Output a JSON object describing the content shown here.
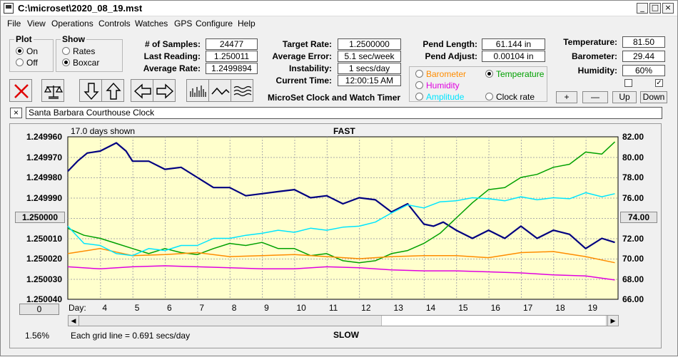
{
  "window": {
    "title": "C:\\microset\\2020_08_19.mst",
    "min_label": "_",
    "max_label": "□",
    "close_label": "×"
  },
  "menu": [
    "File",
    "View",
    "Operations",
    "Controls",
    "Watches",
    "GPS",
    "Configure",
    "Help"
  ],
  "plot": {
    "legend": "Plot",
    "on_label": "On",
    "off_label": "Off",
    "selected": "On"
  },
  "show": {
    "legend": "Show",
    "rates_label": "Rates",
    "boxcar_label": "Boxcar",
    "selected": "Boxcar"
  },
  "stats": {
    "samples_label": "# of Samples:",
    "samples_value": "24477",
    "last_reading_label": "Last Reading:",
    "last_reading_value": "1.250011",
    "average_rate_label": "Average Rate:",
    "average_rate_value": "1.2499894",
    "target_rate_label": "Target Rate:",
    "target_rate_value": "1.2500000",
    "average_error_label": "Average Error:",
    "average_error_value": "5.1 sec/week",
    "instability_label": "Instability:",
    "instability_value": "1 secs/day",
    "current_time_label": "Current Time:",
    "current_time_value": "12:00:15 AM",
    "pend_length_label": "Pend Length:",
    "pend_length_value": "61.144 in",
    "pend_adjust_label": "Pend Adjust:",
    "pend_adjust_value": "0.00104 in",
    "temperature_label": "Temperature:",
    "temperature_value": "81.50",
    "barometer_label": "Barometer:",
    "barometer_value": "29.44",
    "humidity_label": "Humidity:",
    "humidity_value": "60%"
  },
  "app_title": "MicroSet Clock and Watch Timer",
  "sensor_choices": {
    "barometer": "Barometer",
    "temperature": "Temperature",
    "humidity": "Humidity",
    "amplitude": "Amplitude",
    "clock_rate": "Clock rate",
    "selected": "Temperature"
  },
  "adjust_buttons": {
    "plus": "+",
    "minus": "—",
    "up": "Up",
    "down": "Down"
  },
  "toolbar_icons": [
    "close-x-icon",
    "balance-scale-icon",
    "arrow-down-icon",
    "arrow-up-icon",
    "arrow-left-icon",
    "arrow-right-icon",
    "bar-graph-icon",
    "line-graph-icon",
    "wave-graph-icon"
  ],
  "clock_name": {
    "close_label": "×",
    "value": "Santa Barbara Courthouse Clock"
  },
  "colors": {
    "plot_bg": "#ffffcc",
    "rate": "#000080",
    "temperature": "#00a000",
    "humidity": "#e000e0",
    "barometer": "#ff8c00",
    "amplitude": "#00e5ff"
  },
  "chart_data": {
    "type": "line",
    "title": "FAST",
    "bottom_label": "SLOW",
    "days_shown": "17.0 days shown",
    "grid_note": "Each grid line = 0.691 secs/day",
    "x_label": "Day:",
    "x_ticks": [
      4,
      5,
      6,
      7,
      8,
      9,
      10,
      11,
      12,
      13,
      14,
      15,
      16,
      17,
      18,
      19
    ],
    "xlim": [
      3,
      20
    ],
    "left_axis": {
      "ticks": [
        "1.249960",
        "1.249970",
        "1.249980",
        "1.249990",
        "1.250000",
        "1.250010",
        "1.250020",
        "1.250030",
        "1.250040"
      ],
      "ylim": [
        1.24996,
        1.25004
      ],
      "reversed": true,
      "center_button": "1.250000"
    },
    "right_axis": {
      "ticks": [
        "82.00",
        "80.00",
        "78.00",
        "76.00",
        "74.00",
        "72.00",
        "70.00",
        "68.00",
        "66.00"
      ],
      "ylim": [
        66,
        82
      ],
      "center_button": "74.00"
    },
    "left_bottom_button": "0",
    "percent_label": "1.56%",
    "series": [
      {
        "key": "rate",
        "axis": "left",
        "x": [
          3,
          3.3,
          3.6,
          4,
          4.5,
          4.8,
          5,
          5.5,
          6,
          6.5,
          7,
          7.5,
          8,
          8.5,
          9,
          9.5,
          10,
          10.5,
          11,
          11.5,
          12,
          12.5,
          13,
          13.5,
          14,
          14.3,
          14.6,
          15,
          15.5,
          16,
          16.5,
          17,
          17.5,
          18,
          18.5,
          19,
          19.5,
          19.9
        ],
        "y": [
          1.249977,
          1.249972,
          1.249968,
          1.249967,
          1.249963,
          1.249967,
          1.249972,
          1.249972,
          1.249976,
          1.249975,
          1.24998,
          1.249985,
          1.249985,
          1.249989,
          1.249988,
          1.249987,
          1.249986,
          1.24999,
          1.249989,
          1.249993,
          1.24999,
          1.249991,
          1.249997,
          1.249993,
          1.250003,
          1.250004,
          1.250002,
          1.250006,
          1.25001,
          1.250006,
          1.25001,
          1.250004,
          1.25001,
          1.250006,
          1.250008,
          1.250015,
          1.25001,
          1.250012
        ]
      },
      {
        "key": "temperature",
        "axis": "right",
        "x": [
          3,
          3.5,
          4,
          4.5,
          5,
          5.5,
          6,
          6.5,
          7,
          7.5,
          8,
          8.5,
          9,
          9.5,
          10,
          10.5,
          11,
          11.5,
          12,
          12.5,
          13,
          13.5,
          14,
          14.5,
          15,
          15.5,
          16,
          16.5,
          17,
          17.5,
          18,
          18.5,
          19,
          19.5,
          19.9
        ],
        "y": [
          73.0,
          72.3,
          72.0,
          71.5,
          71.0,
          70.5,
          71.0,
          70.6,
          70.4,
          71.0,
          71.5,
          71.3,
          71.6,
          71.0,
          71.0,
          70.3,
          70.5,
          69.8,
          69.6,
          69.8,
          70.5,
          70.8,
          71.5,
          72.5,
          74.0,
          75.5,
          76.8,
          77.0,
          78.0,
          78.3,
          79.0,
          79.3,
          80.5,
          80.3,
          81.5
        ]
      },
      {
        "key": "humidity",
        "axis": "right",
        "x": [
          3,
          4,
          5,
          6,
          7,
          8,
          9,
          10,
          11,
          12,
          13,
          14,
          15,
          16,
          17,
          18,
          19,
          19.9
        ],
        "y": [
          69.2,
          69.0,
          69.2,
          69.3,
          69.2,
          69.1,
          69.0,
          69.0,
          69.2,
          69.1,
          68.9,
          68.8,
          68.8,
          68.7,
          68.6,
          68.4,
          68.3,
          67.9
        ]
      },
      {
        "key": "barometer",
        "axis": "right",
        "x": [
          3,
          4,
          5,
          6,
          7,
          8,
          9,
          10,
          11,
          12,
          13,
          14,
          15,
          16,
          17,
          18,
          19,
          19.9
        ],
        "y": [
          70.5,
          71.0,
          70.3,
          70.4,
          70.6,
          70.2,
          70.3,
          70.4,
          70.2,
          70.0,
          70.2,
          70.3,
          70.3,
          70.1,
          70.6,
          70.7,
          70.2,
          69.6
        ]
      },
      {
        "key": "amplitude",
        "axis": "right",
        "x": [
          3,
          3.5,
          4,
          4.5,
          5,
          5.5,
          6,
          6.5,
          7,
          7.5,
          8,
          8.5,
          9,
          9.5,
          10,
          10.5,
          11,
          11.5,
          12,
          12.5,
          13,
          13.5,
          14,
          14.5,
          15,
          15.5,
          16,
          16.5,
          17,
          17.5,
          18,
          18.5,
          19,
          19.5,
          19.9
        ],
        "y": [
          73.2,
          71.5,
          71.3,
          70.5,
          70.3,
          71.0,
          70.8,
          71.3,
          71.3,
          72.0,
          72.0,
          72.3,
          72.5,
          72.8,
          72.6,
          73.0,
          72.8,
          73.1,
          73.2,
          73.6,
          74.5,
          75.3,
          75.0,
          75.6,
          75.7,
          76.0,
          75.9,
          75.7,
          76.1,
          75.8,
          76.0,
          75.9,
          76.5,
          76.1,
          76.4
        ]
      }
    ]
  }
}
